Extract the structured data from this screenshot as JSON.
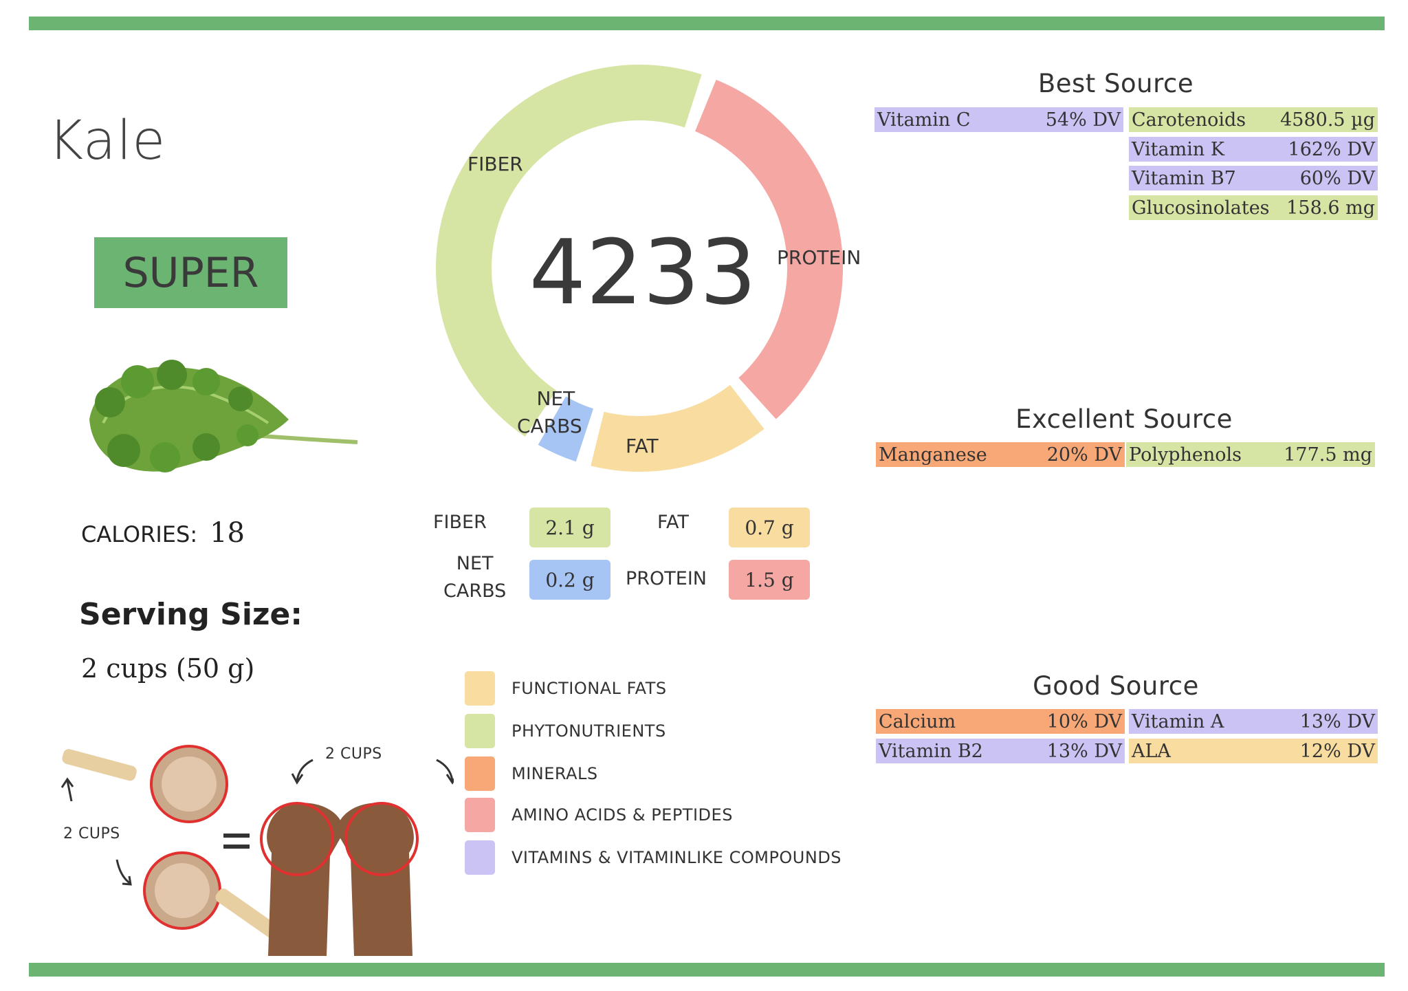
{
  "food": {
    "name": "Kale",
    "badge": "SUPER"
  },
  "calories": {
    "label": "CALORIES:",
    "value": "18"
  },
  "serving": {
    "label": "Serving Size:",
    "value": "2 cups (50 g)"
  },
  "illustration": {
    "cups_top_label": "2 CUPS",
    "cups_left_label": "2 CUPS",
    "equals": "="
  },
  "score": "4233",
  "chart_data": {
    "type": "pie",
    "center_value": "4233",
    "segments": [
      {
        "label": "FIBER",
        "value": 2.1,
        "color": "#d6e4a4"
      },
      {
        "label": "PROTEIN",
        "value": 1.5,
        "color": "#f4a7a3"
      },
      {
        "label": "FAT",
        "value": 0.7,
        "color": "#f8dca0"
      },
      {
        "label": "NET CARBS",
        "value": 0.2,
        "color": "#a6c4f4"
      }
    ]
  },
  "segment_labels": {
    "fiber": "FIBER",
    "protein": "PROTEIN",
    "fat": "FAT",
    "net": "NET",
    "carbs": "CARBS"
  },
  "macros": {
    "fiber": {
      "label": "FIBER",
      "value": "2.1 g"
    },
    "fat": {
      "label": "FAT",
      "value": "0.7 g"
    },
    "net_carbs": {
      "label_line1": "NET",
      "label_line2": "CARBS",
      "value": "0.2 g"
    },
    "protein": {
      "label": "PROTEIN",
      "value": "1.5 g"
    }
  },
  "legend": [
    {
      "label": "FUNCTIONAL  FATS",
      "color": "#f8dca0"
    },
    {
      "label": "PHYTONUTRIENTS",
      "color": "#d6e4a4"
    },
    {
      "label": "MINERALS",
      "color": "#f8a877"
    },
    {
      "label": "AMINO ACIDS & PEPTIDES",
      "color": "#f4a7a3"
    },
    {
      "label": "VITAMINS & VITAMINLIKE COMPOUNDS",
      "color": "#cbc3f4"
    }
  ],
  "best_source": {
    "title": "Best Source",
    "items": [
      {
        "name": "Vitamin C",
        "value": "54% DV"
      },
      {
        "name": "Carotenoids",
        "value": "4580.5 µg"
      },
      {
        "name": "Vitamin K",
        "value": "162% DV"
      },
      {
        "name": "Vitamin B7",
        "value": "60% DV"
      },
      {
        "name": "Glucosinolates",
        "value": "158.6 mg"
      }
    ]
  },
  "excellent_source": {
    "title": "Excellent Source",
    "items": [
      {
        "name": "Manganese",
        "value": "20% DV"
      },
      {
        "name": "Polyphenols",
        "value": "177.5 mg"
      }
    ]
  },
  "good_source": {
    "title": "Good Source",
    "items": [
      {
        "name": "Calcium",
        "value": "10% DV"
      },
      {
        "name": "Vitamin A",
        "value": "13% DV"
      },
      {
        "name": "Vitamin B2",
        "value": "13% DV"
      },
      {
        "name": "ALA",
        "value": "12% DV"
      }
    ]
  },
  "colors": {
    "accent": "#6bb472"
  }
}
